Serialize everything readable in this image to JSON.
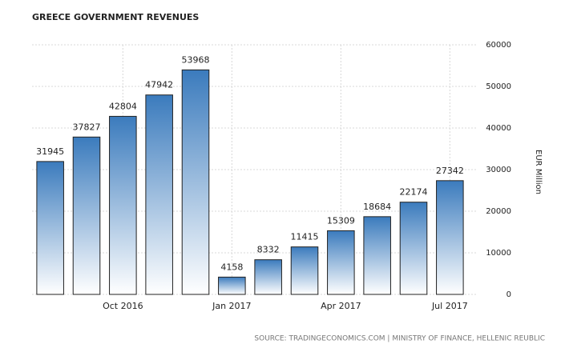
{
  "chart_data": {
    "type": "bar",
    "title": "GREECE GOVERNMENT REVENUES",
    "categories": [
      null,
      null,
      "Oct 2016",
      null,
      null,
      "Jan 2017",
      null,
      null,
      "Apr 2017",
      null,
      null,
      "Jul 2017"
    ],
    "values": [
      31945,
      37827,
      42804,
      47942,
      53968,
      4158,
      8332,
      11415,
      15309,
      18684,
      22174,
      27342
    ],
    "color": "#3b7bbd",
    "y_label": "EUR Million",
    "ylim": [
      0,
      60000
    ],
    "yticks": [
      0,
      10000,
      20000,
      30000,
      40000,
      50000,
      60000
    ],
    "grid": true,
    "source": "SOURCE: TRADINGECONOMICS.COM | MINISTRY OF FINANCE, HELLENIC REUBLIC"
  }
}
